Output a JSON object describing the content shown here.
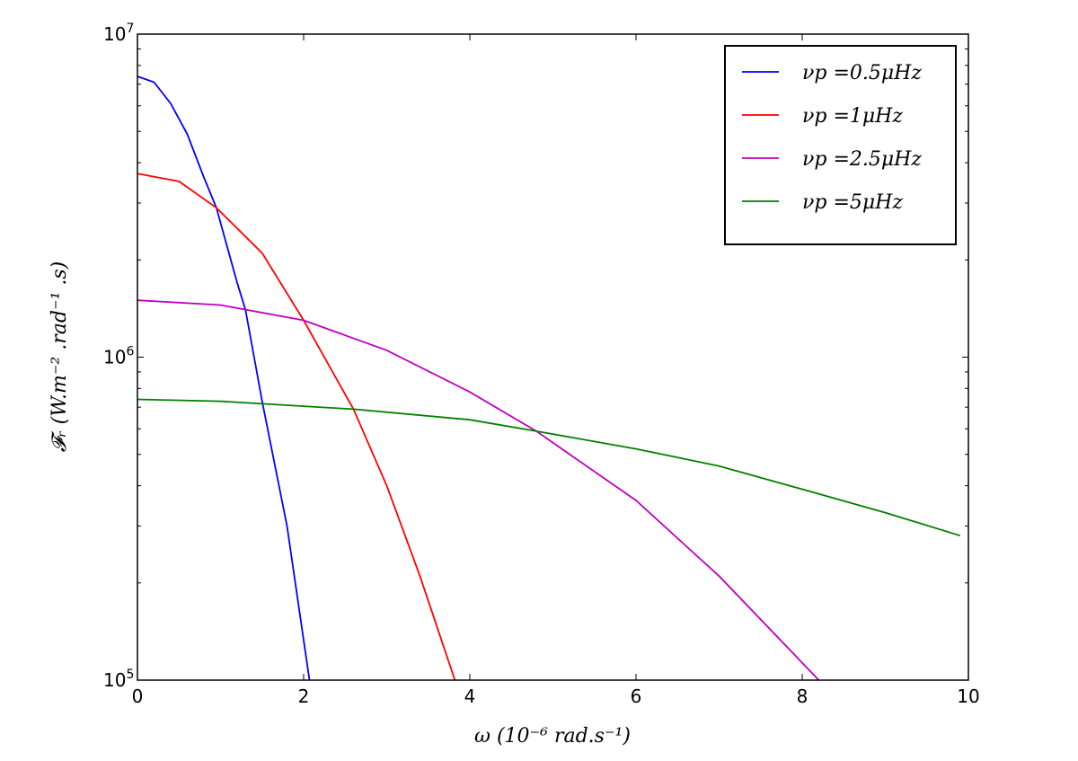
{
  "chart_data": {
    "type": "line",
    "x_scale": "linear",
    "y_scale": "log",
    "xlim": [
      0,
      10
    ],
    "ylim": [
      100000,
      10000000
    ],
    "xlabel": "ω (10⁻⁶ rad.s⁻¹)",
    "ylabel": "𝓕ᵣ (W.m⁻² .rad⁻¹ .s)",
    "x_ticks": [
      0,
      2,
      4,
      6,
      8,
      10
    ],
    "x_tick_labels": [
      "0",
      "2",
      "4",
      "6",
      "8",
      "10"
    ],
    "y_ticks": [
      100000,
      1000000,
      10000000
    ],
    "y_tick_labels": [
      {
        "base": "10",
        "exp": "5"
      },
      {
        "base": "10",
        "exp": "6"
      },
      {
        "base": "10",
        "exp": "7"
      }
    ],
    "grid": false,
    "legend_position": "top-right",
    "series": [
      {
        "name": "νp =0.5μHz",
        "color": "#0000ff",
        "x": [
          0,
          0.2,
          0.4,
          0.6,
          0.8,
          0.95,
          1.2,
          1.3,
          1.5,
          1.8,
          2.07
        ],
        "y": [
          7400000,
          7100000,
          6100000,
          4900000,
          3600000,
          2900000,
          1700000,
          1400000,
          730000,
          300000,
          100000
        ]
      },
      {
        "name": "νp =1μHz",
        "color": "#ff0000",
        "x": [
          0,
          0.5,
          0.95,
          1.5,
          2.0,
          2.6,
          3.0,
          3.4,
          3.82
        ],
        "y": [
          3700000,
          3500000,
          2900000,
          2100000,
          1300000,
          690000,
          400000,
          210000,
          100000
        ]
      },
      {
        "name": "νp =2.5μHz",
        "color": "#bf00bf",
        "x": [
          0,
          1,
          2,
          3,
          4,
          4.8,
          6,
          7,
          8.2
        ],
        "y": [
          1500000,
          1450000,
          1300000,
          1050000,
          780000,
          590000,
          360000,
          210000,
          100000
        ]
      },
      {
        "name": "νp =5μHz",
        "color": "#008000",
        "x": [
          0,
          1,
          2,
          2.6,
          4,
          4.8,
          6,
          7,
          8,
          9,
          9.9
        ],
        "y": [
          740000,
          730000,
          705000,
          690000,
          640000,
          590000,
          520000,
          460000,
          390000,
          330000,
          280000
        ]
      }
    ]
  }
}
